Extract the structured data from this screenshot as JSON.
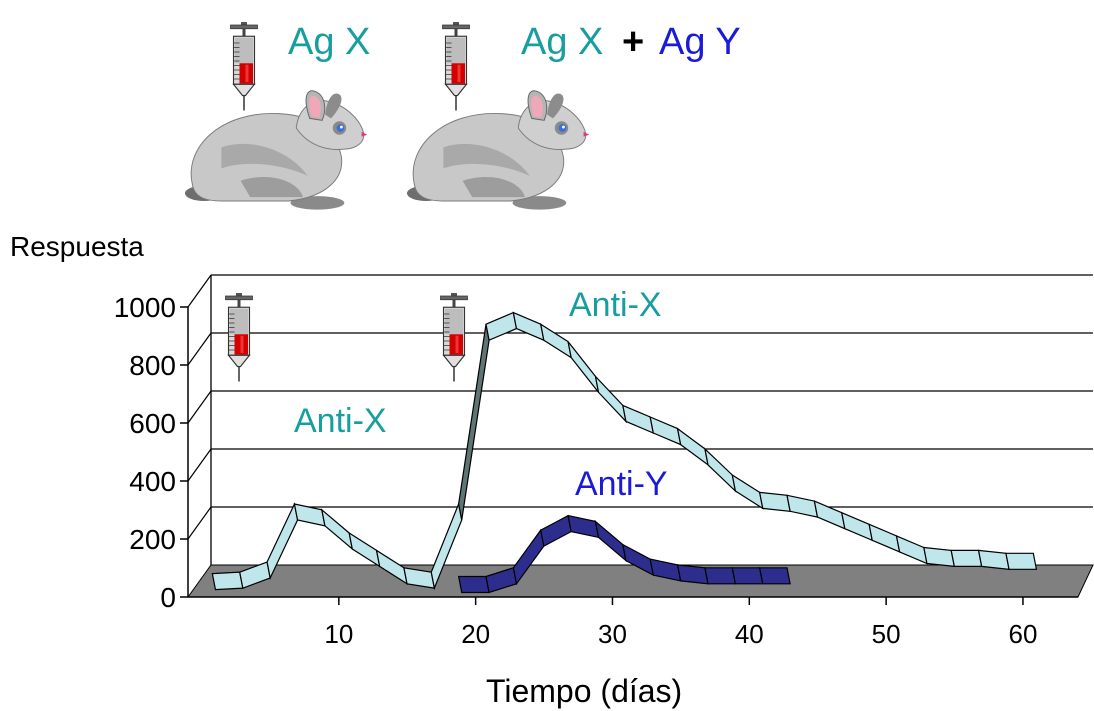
{
  "header": {
    "label_left": "Ag X",
    "label_right_x": "Ag X",
    "label_plus": "+",
    "label_right_y": "Ag Y"
  },
  "colors": {
    "anti_x": "#179e9e",
    "anti_y": "#1a1ad8",
    "ribbon_x_face": "#bfe6ea",
    "ribbon_y_face": "#2d2d8e",
    "floor": "#808080",
    "rabbit": "#c8c8c8",
    "syringe_fluid": "#d40000"
  },
  "icons": [
    "syringe-icon",
    "rabbit-icon"
  ],
  "chart_data": {
    "type": "line",
    "style": "3d-ribbon",
    "ylabel": "Respuesta",
    "xlabel": "Tiempo (días)",
    "xlim": [
      0,
      63
    ],
    "ylim": [
      0,
      1000
    ],
    "yticks": [
      0,
      200,
      400,
      600,
      800,
      1000
    ],
    "xticks": [
      10,
      20,
      30,
      40,
      50,
      60
    ],
    "grid": true,
    "annotations": {
      "anti_x_primary": "Anti-X",
      "anti_x_secondary": "Anti-X",
      "anti_y": "Anti-Y"
    },
    "injections_days": [
      0,
      18
    ],
    "series": [
      {
        "name": "Anti-X",
        "x": [
          0,
          2,
          4,
          6,
          8,
          10,
          12,
          14,
          16,
          18,
          20,
          22,
          24,
          26,
          28,
          30,
          32,
          34,
          36,
          38,
          40,
          42,
          44,
          46,
          48,
          50,
          52,
          54,
          56,
          58,
          60
        ],
        "y": [
          20,
          25,
          60,
          260,
          240,
          160,
          100,
          40,
          25,
          260,
          880,
          920,
          880,
          820,
          700,
          600,
          560,
          520,
          450,
          360,
          300,
          290,
          270,
          230,
          190,
          150,
          110,
          100,
          100,
          90,
          90
        ]
      },
      {
        "name": "Anti-Y",
        "x": [
          18,
          20,
          22,
          24,
          26,
          28,
          30,
          32,
          34,
          36,
          38,
          40,
          42
        ],
        "y": [
          10,
          10,
          40,
          170,
          220,
          200,
          120,
          70,
          50,
          40,
          40,
          40,
          40
        ]
      }
    ]
  }
}
